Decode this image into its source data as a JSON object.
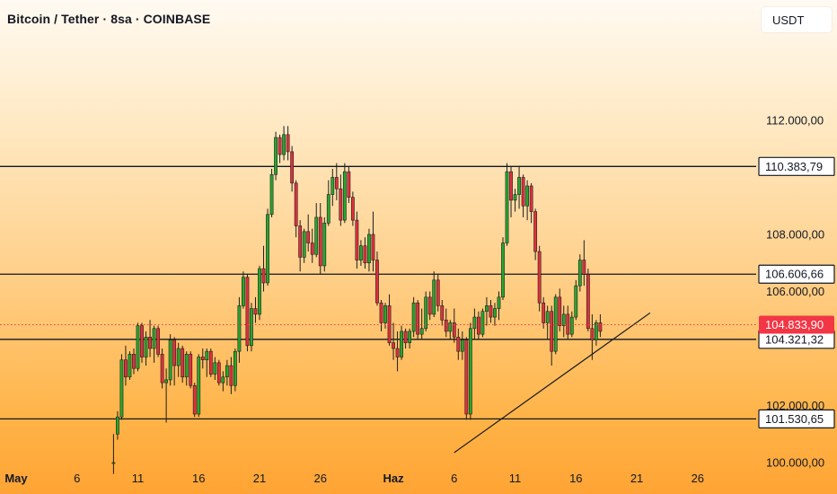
{
  "header": {
    "title": "Bitcoin / Tether · 8sa · COINBASE",
    "currency": "USDT"
  },
  "colors": {
    "up": "#26a62e",
    "down": "#e0303e",
    "line": "#131722",
    "price_label_bg": "#f23645"
  },
  "chart_data": {
    "type": "candlestick",
    "title": "Bitcoin / Tether · 8sa · COINBASE",
    "xlabel": "",
    "ylabel": "USDT",
    "ylim": [
      99600,
      113800
    ],
    "grid": false,
    "y_ticks": [
      {
        "value": 100000,
        "label": "100.000,00"
      },
      {
        "value": 102000,
        "label": "102.000,00"
      },
      {
        "value": 106000,
        "label": "106.000,00"
      },
      {
        "value": 108000,
        "label": "108.000,00"
      },
      {
        "value": 112000,
        "label": "112.000,00"
      }
    ],
    "x_ticks": [
      {
        "label": "May",
        "day": 1,
        "bold": true
      },
      {
        "label": "6",
        "day": 6
      },
      {
        "label": "11",
        "day": 11
      },
      {
        "label": "16",
        "day": 16
      },
      {
        "label": "21",
        "day": 21
      },
      {
        "label": "26",
        "day": 26
      },
      {
        "label": "Haz",
        "day": 32,
        "bold": true
      },
      {
        "label": "6",
        "day": 37
      },
      {
        "label": "11",
        "day": 42
      },
      {
        "label": "16",
        "day": 47
      },
      {
        "label": "21",
        "day": 52
      },
      {
        "label": "26",
        "day": 57
      }
    ],
    "horizontal_levels": [
      {
        "value": 110383.79,
        "label": "110.383,79"
      },
      {
        "value": 106606.66,
        "label": "106.606,66"
      },
      {
        "value": 104321.32,
        "label": "104.321,32"
      },
      {
        "value": 101530.65,
        "label": "101.530,65"
      }
    ],
    "current_price": {
      "value": 104833.9,
      "label": "104.833,90"
    },
    "trendline": [
      {
        "day": 37.0,
        "price": 100350
      },
      {
        "day": 53.1,
        "price": 105250
      }
    ],
    "candles_start_day": 9.0,
    "candles_per_day": 3,
    "candles": [
      [
        100000,
        101000,
        99600,
        100000
      ],
      [
        101000,
        101800,
        100800,
        101600
      ],
      [
        101600,
        103800,
        101500,
        103600
      ],
      [
        103600,
        104100,
        102700,
        103000
      ],
      [
        103000,
        103900,
        102900,
        103800
      ],
      [
        103800,
        104000,
        103100,
        103300
      ],
      [
        103300,
        104900,
        103200,
        104800
      ],
      [
        104800,
        104900,
        103500,
        103700
      ],
      [
        103700,
        104600,
        103400,
        104400
      ],
      [
        104400,
        105000,
        103700,
        104000
      ],
      [
        104000,
        104800,
        103500,
        104700
      ],
      [
        104700,
        104800,
        103700,
        103800
      ],
      [
        103800,
        104000,
        102600,
        102800
      ],
      [
        102800,
        103300,
        101400,
        102900
      ],
      [
        102900,
        104500,
        102700,
        104300
      ],
      [
        104300,
        104400,
        102700,
        103400
      ],
      [
        103400,
        104200,
        103000,
        104000
      ],
      [
        104000,
        104100,
        102800,
        103000
      ],
      [
        103000,
        103900,
        102700,
        103800
      ],
      [
        103800,
        103900,
        102600,
        102700
      ],
      [
        102700,
        102800,
        101600,
        101700
      ],
      [
        101700,
        103800,
        101600,
        103700
      ],
      [
        103700,
        104000,
        103300,
        103600
      ],
      [
        103600,
        104000,
        103000,
        103900
      ],
      [
        103900,
        104000,
        103000,
        103100
      ],
      [
        103100,
        103700,
        102900,
        103500
      ],
      [
        103500,
        103600,
        102700,
        102800
      ],
      [
        102800,
        103200,
        102500,
        103000
      ],
      [
        103000,
        103600,
        102700,
        103400
      ],
      [
        103400,
        103700,
        102400,
        102700
      ],
      [
        102700,
        104000,
        102500,
        103900
      ],
      [
        103900,
        105800,
        103500,
        105500
      ],
      [
        105500,
        106700,
        105400,
        106500
      ],
      [
        106500,
        106600,
        103900,
        104100
      ],
      [
        104100,
        105600,
        103900,
        105400
      ],
      [
        105400,
        105800,
        104900,
        105200
      ],
      [
        105200,
        106900,
        105000,
        106800
      ],
      [
        106800,
        107600,
        106000,
        106300
      ],
      [
        106300,
        108900,
        106200,
        108700
      ],
      [
        108700,
        110300,
        108600,
        110100
      ],
      [
        110100,
        111600,
        109900,
        111400
      ],
      [
        111400,
        111500,
        110500,
        110800
      ],
      [
        110800,
        111800,
        110600,
        111500
      ],
      [
        111500,
        111800,
        110600,
        110900
      ],
      [
        110900,
        111100,
        109500,
        109800
      ],
      [
        109800,
        109900,
        107900,
        108300
      ],
      [
        108300,
        108500,
        106700,
        107200
      ],
      [
        107200,
        108200,
        107000,
        108100
      ],
      [
        108100,
        108700,
        107400,
        107700
      ],
      [
        107700,
        108200,
        107000,
        107300
      ],
      [
        107300,
        109100,
        107200,
        108600
      ],
      [
        108600,
        109100,
        106600,
        106900
      ],
      [
        106900,
        108600,
        106700,
        108400
      ],
      [
        108400,
        109900,
        108300,
        109400
      ],
      [
        109400,
        110300,
        109000,
        110000
      ],
      [
        110000,
        110500,
        109200,
        109600
      ],
      [
        109600,
        110100,
        108300,
        108500
      ],
      [
        108500,
        110500,
        108400,
        110200
      ],
      [
        110200,
        110400,
        109100,
        109300
      ],
      [
        109300,
        109500,
        108300,
        108500
      ],
      [
        108500,
        108800,
        106800,
        107100
      ],
      [
        107100,
        107800,
        106900,
        107600
      ],
      [
        107600,
        107900,
        106800,
        107000
      ],
      [
        107000,
        108200,
        106700,
        108000
      ],
      [
        108000,
        108800,
        106700,
        107100
      ],
      [
        107100,
        107400,
        105500,
        105600
      ],
      [
        105600,
        105700,
        104600,
        104900
      ],
      [
        104900,
        105600,
        104700,
        105500
      ],
      [
        105500,
        105900,
        104100,
        104200
      ],
      [
        104200,
        104900,
        103600,
        104000
      ],
      [
        104000,
        104600,
        103200,
        103700
      ],
      [
        103700,
        104800,
        103600,
        104600
      ],
      [
        104600,
        104700,
        104000,
        104200
      ],
      [
        104200,
        104700,
        104000,
        104600
      ],
      [
        104600,
        105800,
        104400,
        105600
      ],
      [
        105600,
        105700,
        104300,
        104500
      ],
      [
        104500,
        105400,
        104300,
        104700
      ],
      [
        104700,
        106000,
        104600,
        105800
      ],
      [
        105800,
        106000,
        105000,
        105200
      ],
      [
        105200,
        106700,
        105100,
        106400
      ],
      [
        106400,
        106600,
        105300,
        105500
      ],
      [
        105500,
        105700,
        104800,
        105000
      ],
      [
        105000,
        105400,
        104400,
        104600
      ],
      [
        104600,
        105000,
        104300,
        104900
      ],
      [
        104900,
        105400,
        104200,
        104400
      ],
      [
        104400,
        104700,
        103600,
        103900
      ],
      [
        103900,
        104600,
        103600,
        104300
      ],
      [
        104300,
        104400,
        101500,
        101700
      ],
      [
        101700,
        104900,
        101500,
        104700
      ],
      [
        104700,
        105400,
        104300,
        105100
      ],
      [
        105100,
        105300,
        104300,
        104500
      ],
      [
        104500,
        105400,
        104400,
        105300
      ],
      [
        105300,
        105800,
        104800,
        105500
      ],
      [
        105500,
        105700,
        104900,
        105100
      ],
      [
        105100,
        105600,
        104800,
        105400
      ],
      [
        105400,
        106000,
        105000,
        105800
      ],
      [
        105800,
        107900,
        105700,
        107700
      ],
      [
        107700,
        110500,
        107600,
        110200
      ],
      [
        110200,
        110400,
        108600,
        109200
      ],
      [
        109200,
        109600,
        108800,
        109400
      ],
      [
        109400,
        110400,
        108900,
        110000
      ],
      [
        110000,
        110100,
        108600,
        109000
      ],
      [
        109000,
        109900,
        108500,
        109700
      ],
      [
        109700,
        109800,
        108400,
        108800
      ],
      [
        108800,
        108900,
        107100,
        107400
      ],
      [
        107400,
        107600,
        105300,
        105600
      ],
      [
        105600,
        105800,
        104700,
        104900
      ],
      [
        104900,
        105500,
        104300,
        105300
      ],
      [
        105300,
        105500,
        103400,
        103900
      ],
      [
        103900,
        105900,
        103800,
        105800
      ],
      [
        105800,
        106100,
        104600,
        104800
      ],
      [
        104800,
        105500,
        104400,
        105200
      ],
      [
        105200,
        105500,
        104300,
        104500
      ],
      [
        104500,
        105300,
        104400,
        105100
      ],
      [
        105100,
        106400,
        105000,
        106200
      ],
      [
        106200,
        107300,
        106000,
        107100
      ],
      [
        107100,
        107800,
        106200,
        106600
      ],
      [
        106600,
        106800,
        104600,
        104700
      ],
      [
        104700,
        105200,
        103600,
        104300
      ],
      [
        104300,
        105000,
        104100,
        104900
      ],
      [
        104900,
        105200,
        104400,
        104600
      ]
    ]
  }
}
